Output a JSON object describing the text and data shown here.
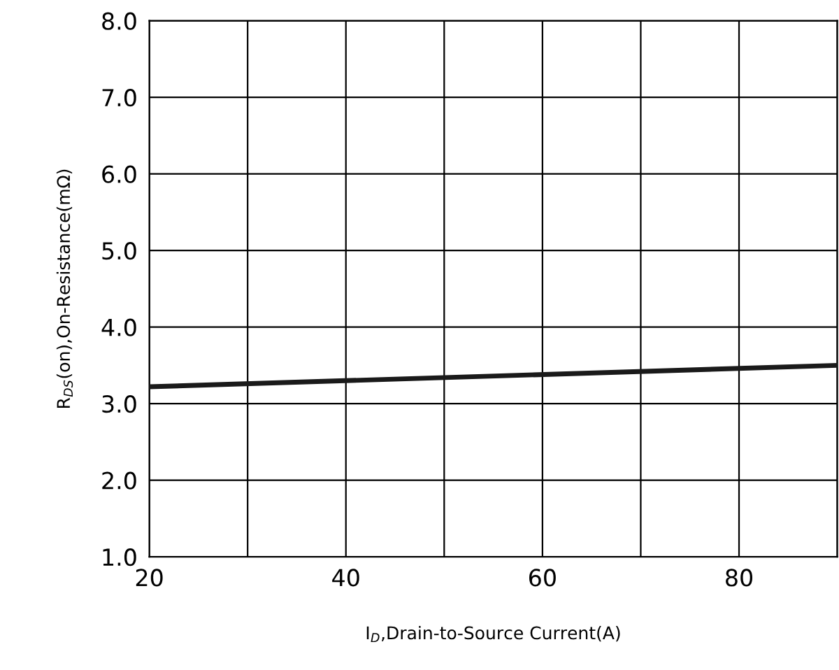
{
  "chart_data": {
    "type": "line",
    "xlabel": "I$_{D}$,Drain-to-Source Current(A)",
    "ylabel": "R$_{DS}$(on),On-Resistance(mΩ)",
    "x": [
      20,
      90
    ],
    "series": [
      {
        "color": "#1a1a1a",
        "values": [
          3.22,
          3.5
        ]
      }
    ],
    "xlim": [
      20,
      90
    ],
    "xticks": [
      20,
      {
        "value": 30,
        "label": null
      },
      40,
      {
        "value": 50,
        "label": null
      },
      60,
      {
        "value": 70,
        "label": null
      },
      80,
      {
        "value": 90,
        "label": null
      }
    ],
    "ylim": [
      1.0,
      8.0
    ],
    "yticks": [
      {
        "value": 1.0,
        "label": "1.0"
      },
      {
        "value": 2.0,
        "label": "2.0"
      },
      {
        "value": 3.0,
        "label": "3.0"
      },
      {
        "value": 4.0,
        "label": "4.0"
      },
      {
        "value": 5.0,
        "label": "5.0"
      },
      {
        "value": 6.0,
        "label": "6.0"
      },
      {
        "value": 7.0,
        "label": "7.0"
      },
      {
        "value": 8.0,
        "label": "8.0"
      }
    ],
    "grid": true,
    "line_style": "solid",
    "marker": "none"
  }
}
